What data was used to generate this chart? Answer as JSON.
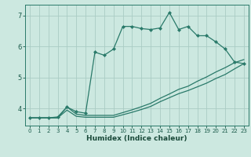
{
  "bg_color": "#cce8e0",
  "grid_color": "#aaccC4",
  "line_color": "#2a7a6a",
  "xlabel": "Humidex (Indice chaleur)",
  "yticks": [
    4,
    5,
    6,
    7
  ],
  "xticks": [
    0,
    1,
    2,
    3,
    4,
    5,
    6,
    7,
    8,
    9,
    10,
    11,
    12,
    13,
    14,
    15,
    16,
    17,
    18,
    19,
    20,
    21,
    22,
    23
  ],
  "xlim": [
    -0.5,
    23.5
  ],
  "ylim": [
    3.45,
    7.35
  ],
  "line1_x": [
    0,
    1,
    2,
    3,
    4,
    5,
    6,
    7,
    8,
    9,
    10,
    11,
    12,
    13,
    14,
    15,
    16,
    17,
    18,
    19,
    20,
    21,
    22,
    23
  ],
  "line1_y": [
    3.7,
    3.7,
    3.7,
    3.73,
    4.05,
    3.9,
    3.85,
    5.82,
    5.72,
    5.92,
    6.65,
    6.65,
    6.58,
    6.55,
    6.6,
    7.1,
    6.55,
    6.65,
    6.35,
    6.35,
    6.15,
    5.92,
    5.5,
    5.45
  ],
  "line2_x": [
    0,
    1,
    2,
    3,
    4,
    5,
    6,
    7,
    8,
    9,
    10,
    11,
    12,
    13,
    14,
    15,
    16,
    17,
    18,
    19,
    20,
    21,
    22,
    23
  ],
  "line2_y": [
    3.7,
    3.7,
    3.7,
    3.7,
    3.95,
    3.75,
    3.72,
    3.72,
    3.72,
    3.72,
    3.8,
    3.88,
    3.97,
    4.07,
    4.22,
    4.35,
    4.48,
    4.58,
    4.7,
    4.82,
    4.97,
    5.1,
    5.28,
    5.45
  ],
  "line3_x": [
    0,
    1,
    2,
    3,
    4,
    5,
    6,
    7,
    8,
    9,
    10,
    11,
    12,
    13,
    14,
    15,
    16,
    17,
    18,
    19,
    20,
    21,
    22,
    23
  ],
  "line3_y": [
    3.7,
    3.7,
    3.7,
    3.7,
    4.05,
    3.82,
    3.78,
    3.78,
    3.78,
    3.78,
    3.87,
    3.96,
    4.06,
    4.17,
    4.33,
    4.47,
    4.62,
    4.72,
    4.88,
    5.02,
    5.18,
    5.32,
    5.48,
    5.58
  ]
}
